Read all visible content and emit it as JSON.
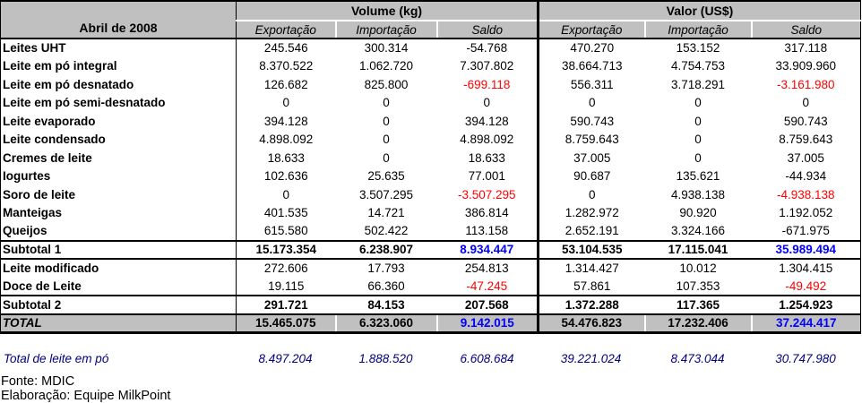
{
  "colors": {
    "header_bg": "#C0C0C0",
    "negative_red": "#FF0000",
    "saldo_blue": "#0000FF",
    "footnote_navy": "#000080"
  },
  "chart_data": {
    "type": "table",
    "corner_label": "Abril de 2008",
    "column_groups": [
      {
        "label": "Volume (kg)",
        "columns": [
          "Exportação",
          "Importação",
          "Saldo"
        ]
      },
      {
        "label": "Valor (US$)",
        "columns": [
          "Exportação",
          "Importação",
          "Saldo"
        ]
      }
    ],
    "rows": [
      {
        "label": "Leites UHT",
        "type": "data",
        "values": [
          "245.546",
          "300.314",
          "-54.768",
          "470.270",
          "153.152",
          "317.118"
        ],
        "styles": [
          "",
          "",
          "",
          "",
          "",
          ""
        ]
      },
      {
        "label": "Leite em pó integral",
        "type": "data",
        "values": [
          "8.370.522",
          "1.062.720",
          "7.307.802",
          "38.664.713",
          "4.754.753",
          "33.909.960"
        ],
        "styles": [
          "",
          "",
          "",
          "",
          "",
          ""
        ]
      },
      {
        "label": "Leite em pó desnatado",
        "type": "data",
        "values": [
          "126.682",
          "825.800",
          "-699.118",
          "556.311",
          "3.718.291",
          "-3.161.980"
        ],
        "styles": [
          "",
          "",
          "red",
          "",
          "",
          "red"
        ]
      },
      {
        "label": "Leite em pó semi-desnatado",
        "type": "data",
        "values": [
          "0",
          "0",
          "0",
          "0",
          "0",
          "0"
        ],
        "styles": [
          "",
          "",
          "",
          "",
          "",
          ""
        ]
      },
      {
        "label": "Leite evaporado",
        "type": "data",
        "values": [
          "394.128",
          "0",
          "394.128",
          "590.743",
          "0",
          "590.743"
        ],
        "styles": [
          "",
          "",
          "",
          "",
          "",
          ""
        ]
      },
      {
        "label": "Leite condensado",
        "type": "data",
        "values": [
          "4.898.092",
          "0",
          "4.898.092",
          "8.759.643",
          "0",
          "8.759.643"
        ],
        "styles": [
          "",
          "",
          "",
          "",
          "",
          ""
        ]
      },
      {
        "label": "Cremes de leite",
        "type": "data",
        "values": [
          "18.633",
          "0",
          "18.633",
          "37.005",
          "0",
          "37.005"
        ],
        "styles": [
          "",
          "",
          "",
          "",
          "",
          ""
        ]
      },
      {
        "label": "Iogurtes",
        "type": "data",
        "values": [
          "102.636",
          "25.635",
          "77.001",
          "90.687",
          "135.621",
          "-44.934"
        ],
        "styles": [
          "",
          "",
          "",
          "",
          "",
          ""
        ]
      },
      {
        "label": "Soro de leite",
        "type": "data",
        "values": [
          "0",
          "3.507.295",
          "-3.507.295",
          "0",
          "4.938.138",
          "-4.938.138"
        ],
        "styles": [
          "",
          "",
          "red",
          "",
          "",
          "red"
        ]
      },
      {
        "label": "Manteigas",
        "type": "data",
        "values": [
          "401.535",
          "14.721",
          "386.814",
          "1.282.972",
          "90.920",
          "1.192.052"
        ],
        "styles": [
          "",
          "",
          "",
          "",
          "",
          ""
        ]
      },
      {
        "label": "Queijos",
        "type": "data",
        "values": [
          "615.580",
          "502.422",
          "113.158",
          "2.652.191",
          "3.324.166",
          "-671.975"
        ],
        "styles": [
          "",
          "",
          "",
          "",
          "",
          ""
        ]
      },
      {
        "label": "Subtotal 1",
        "type": "subtotal",
        "values": [
          "15.173.354",
          "6.238.907",
          "8.934.447",
          "53.104.535",
          "17.115.041",
          "35.989.494"
        ],
        "styles": [
          "",
          "",
          "blue",
          "",
          "",
          "blue"
        ]
      },
      {
        "label": "Leite modificado",
        "type": "data",
        "values": [
          "272.606",
          "17.793",
          "254.813",
          "1.314.427",
          "10.012",
          "1.304.415"
        ],
        "styles": [
          "",
          "",
          "",
          "",
          "",
          ""
        ]
      },
      {
        "label": "Doce de Leite",
        "type": "data",
        "values": [
          "19.115",
          "66.360",
          "-47.245",
          "57.861",
          "107.353",
          "-49.492"
        ],
        "styles": [
          "",
          "",
          "red",
          "",
          "",
          "red"
        ]
      },
      {
        "label": "Subtotal 2",
        "type": "subtotal",
        "values": [
          "291.721",
          "84.153",
          "207.568",
          "1.372.288",
          "117.365",
          "1.254.923"
        ],
        "styles": [
          "",
          "",
          "",
          "",
          "",
          ""
        ]
      },
      {
        "label": "TOTAL",
        "type": "total",
        "values": [
          "15.465.075",
          "6.323.060",
          "9.142.015",
          "54.476.823",
          "17.232.406",
          "37.244.417"
        ],
        "styles": [
          "",
          "",
          "blue",
          "",
          "",
          "blue"
        ]
      }
    ],
    "footnote_row": {
      "label": "Total de leite em pó",
      "values": [
        "8.497.204",
        "1.888.520",
        "6.608.684",
        "39.221.024",
        "8.473.044",
        "30.747.980"
      ]
    },
    "source_line": "Fonte: MDIC",
    "elaboration_line": "Elaboração: Equipe MilkPoint"
  }
}
